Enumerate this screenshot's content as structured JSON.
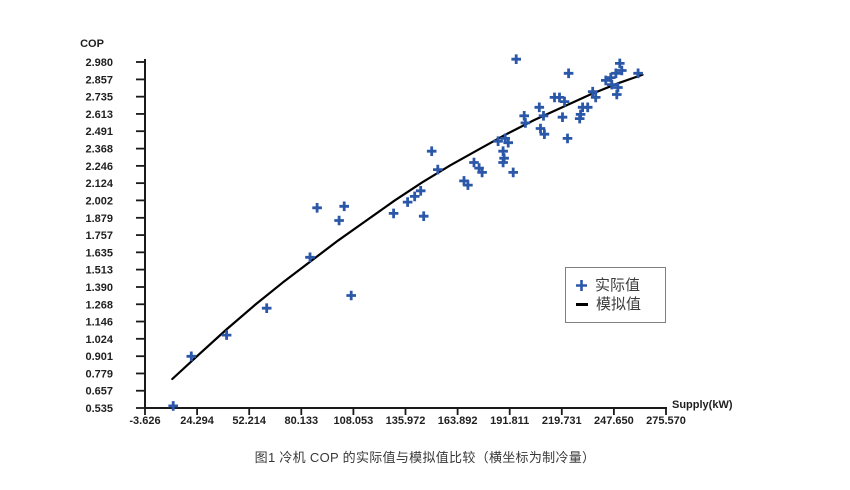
{
  "figure": {
    "caption": "图1 冷机 COP 的实际值与模拟值比较（横坐标为制冷量）"
  },
  "chart_data": {
    "type": "scatter",
    "title": "",
    "xlabel": "Supply(kW)",
    "ylabel": "COP",
    "xlim": [
      -3.626,
      275.57
    ],
    "ylim": [
      0.535,
      2.98
    ],
    "grid": false,
    "axis_color": "#1a1a1a",
    "legend_position": "right-middle",
    "x_tick_labels": [
      "-3.626",
      "24.294",
      "52.214",
      "80.133",
      "108.053",
      "135.972",
      "163.892",
      "191.811",
      "219.731",
      "247.650",
      "275.570"
    ],
    "y_tick_labels": [
      "2.980",
      "2.857",
      "2.735",
      "2.613",
      "2.491",
      "2.368",
      "2.246",
      "2.124",
      "2.002",
      "1.879",
      "1.757",
      "1.635",
      "1.513",
      "1.390",
      "1.268",
      "1.146",
      "1.024",
      "0.901",
      "0.779",
      "0.657",
      "0.535"
    ],
    "series": [
      {
        "name": "实际值",
        "type": "scatter",
        "marker": "plus",
        "color": "#2b57a8",
        "points": [
          [
            11.5,
            0.55
          ],
          [
            21.2,
            0.9
          ],
          [
            40.1,
            1.05
          ],
          [
            61.6,
            1.24
          ],
          [
            84.8,
            1.6
          ],
          [
            88.6,
            1.95
          ],
          [
            100.4,
            1.86
          ],
          [
            103.1,
            1.96
          ],
          [
            106.9,
            1.33
          ],
          [
            129.6,
            1.91
          ],
          [
            137.1,
            1.99
          ],
          [
            140.9,
            2.03
          ],
          [
            144.1,
            2.07
          ],
          [
            145.7,
            1.89
          ],
          [
            150.0,
            2.35
          ],
          [
            153.3,
            2.22
          ],
          [
            167.3,
            2.14
          ],
          [
            169.4,
            2.11
          ],
          [
            172.7,
            2.27
          ],
          [
            175.4,
            2.23
          ],
          [
            177.0,
            2.2
          ],
          [
            185.6,
            2.42
          ],
          [
            189.4,
            2.44
          ],
          [
            191.0,
            2.41
          ],
          [
            188.3,
            2.35
          ],
          [
            188.8,
            2.3
          ],
          [
            188.3,
            2.27
          ],
          [
            193.7,
            2.2
          ],
          [
            195.3,
            3.0
          ],
          [
            199.6,
            2.6
          ],
          [
            200.2,
            2.55
          ],
          [
            207.7,
            2.66
          ],
          [
            208.3,
            2.51
          ],
          [
            209.9,
            2.6
          ],
          [
            210.4,
            2.47
          ],
          [
            215.8,
            2.73
          ],
          [
            218.5,
            2.73
          ],
          [
            220.1,
            2.59
          ],
          [
            221.2,
            2.7
          ],
          [
            222.8,
            2.44
          ],
          [
            223.4,
            2.9
          ],
          [
            229.3,
            2.58
          ],
          [
            229.8,
            2.61
          ],
          [
            230.9,
            2.66
          ],
          [
            233.6,
            2.66
          ],
          [
            236.3,
            2.77
          ],
          [
            237.9,
            2.73
          ],
          [
            243.3,
            2.85
          ],
          [
            246.0,
            2.87
          ],
          [
            246.5,
            2.82
          ],
          [
            248.7,
            2.9
          ],
          [
            249.2,
            2.75
          ],
          [
            249.8,
            2.8
          ],
          [
            250.8,
            2.97
          ],
          [
            251.9,
            2.92
          ],
          [
            260.6,
            2.9
          ]
        ]
      },
      {
        "name": "模拟值",
        "type": "line",
        "marker": "none",
        "color": "#000000",
        "points": [
          [
            11,
            0.74
          ],
          [
            25,
            0.91
          ],
          [
            40,
            1.09
          ],
          [
            55,
            1.26
          ],
          [
            70,
            1.42
          ],
          [
            85,
            1.57
          ],
          [
            100,
            1.72
          ],
          [
            115,
            1.86
          ],
          [
            130,
            2.0
          ],
          [
            145,
            2.13
          ],
          [
            160,
            2.25
          ],
          [
            175,
            2.36
          ],
          [
            190,
            2.47
          ],
          [
            205,
            2.57
          ],
          [
            220,
            2.66
          ],
          [
            235,
            2.75
          ],
          [
            250,
            2.83
          ],
          [
            263,
            2.89
          ]
        ]
      }
    ]
  }
}
